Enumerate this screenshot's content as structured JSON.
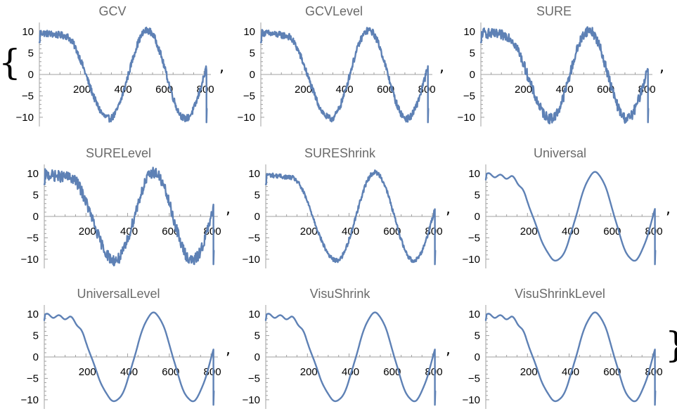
{
  "punctuation": {
    "open_brace": "{",
    "close_brace": "}",
    "comma": ","
  },
  "chart_data": [
    {
      "type": "line",
      "title": "GCV",
      "noise": 0.8,
      "smooth": false,
      "xlim": [
        0,
        820
      ],
      "ylim": [
        -11.5,
        11.5
      ],
      "xticks": [
        200,
        400,
        600,
        800
      ],
      "yticks": [
        -10,
        -5,
        0,
        5,
        10
      ],
      "series": [
        {
          "color": "#5e81b5"
        }
      ]
    },
    {
      "type": "line",
      "title": "GCVLevel",
      "noise": 0.8,
      "smooth": false,
      "xlim": [
        0,
        820
      ],
      "ylim": [
        -11.5,
        11.5
      ],
      "xticks": [
        200,
        400,
        600,
        800
      ],
      "yticks": [
        -10,
        -5,
        0,
        5,
        10
      ],
      "series": [
        {
          "color": "#5e81b5"
        }
      ]
    },
    {
      "type": "line",
      "title": "SURE",
      "noise": 1.2,
      "smooth": false,
      "xlim": [
        0,
        820
      ],
      "ylim": [
        -11.5,
        11.5
      ],
      "xticks": [
        200,
        400,
        600,
        800
      ],
      "yticks": [
        -10,
        -5,
        0,
        5,
        10
      ],
      "series": [
        {
          "color": "#5e81b5"
        }
      ]
    },
    {
      "type": "line",
      "title": "SURELevel",
      "noise": 1.3,
      "smooth": false,
      "xlim": [
        0,
        820
      ],
      "ylim": [
        -11.5,
        11.5
      ],
      "xticks": [
        200,
        400,
        600,
        800
      ],
      "yticks": [
        -10,
        -5,
        0,
        5,
        10
      ],
      "series": [
        {
          "color": "#5e81b5"
        }
      ]
    },
    {
      "type": "line",
      "title": "SUREShrink",
      "noise": 0.5,
      "smooth": false,
      "xlim": [
        0,
        820
      ],
      "ylim": [
        -11.5,
        11.5
      ],
      "xticks": [
        200,
        400,
        600,
        800
      ],
      "yticks": [
        -10,
        -5,
        0,
        5,
        10
      ],
      "series": [
        {
          "color": "#5e81b5"
        }
      ]
    },
    {
      "type": "line",
      "title": "Universal",
      "noise": 0.0,
      "smooth": true,
      "xlim": [
        0,
        820
      ],
      "ylim": [
        -11.5,
        11.5
      ],
      "xticks": [
        200,
        400,
        600,
        800
      ],
      "yticks": [
        -10,
        -5,
        0,
        5,
        10
      ],
      "series": [
        {
          "color": "#5e81b5"
        }
      ]
    },
    {
      "type": "line",
      "title": "UniversalLevel",
      "noise": 0.0,
      "smooth": true,
      "xlim": [
        0,
        820
      ],
      "ylim": [
        -11.5,
        11.5
      ],
      "xticks": [
        200,
        400,
        600,
        800
      ],
      "yticks": [
        -10,
        -5,
        0,
        5,
        10
      ],
      "series": [
        {
          "color": "#5e81b5"
        }
      ]
    },
    {
      "type": "line",
      "title": "VisuShrink",
      "noise": 0.0,
      "smooth": true,
      "xlim": [
        0,
        820
      ],
      "ylim": [
        -11.5,
        11.5
      ],
      "xticks": [
        200,
        400,
        600,
        800
      ],
      "yticks": [
        -10,
        -5,
        0,
        5,
        10
      ],
      "series": [
        {
          "color": "#5e81b5"
        }
      ]
    },
    {
      "type": "line",
      "title": "VisuShrinkLevel",
      "noise": 0.0,
      "smooth": true,
      "xlim": [
        0,
        820
      ],
      "ylim": [
        -11.5,
        11.5
      ],
      "xticks": [
        200,
        400,
        600,
        800
      ],
      "yticks": [
        -10,
        -5,
        0,
        5,
        10
      ],
      "series": [
        {
          "color": "#5e81b5"
        }
      ]
    }
  ]
}
